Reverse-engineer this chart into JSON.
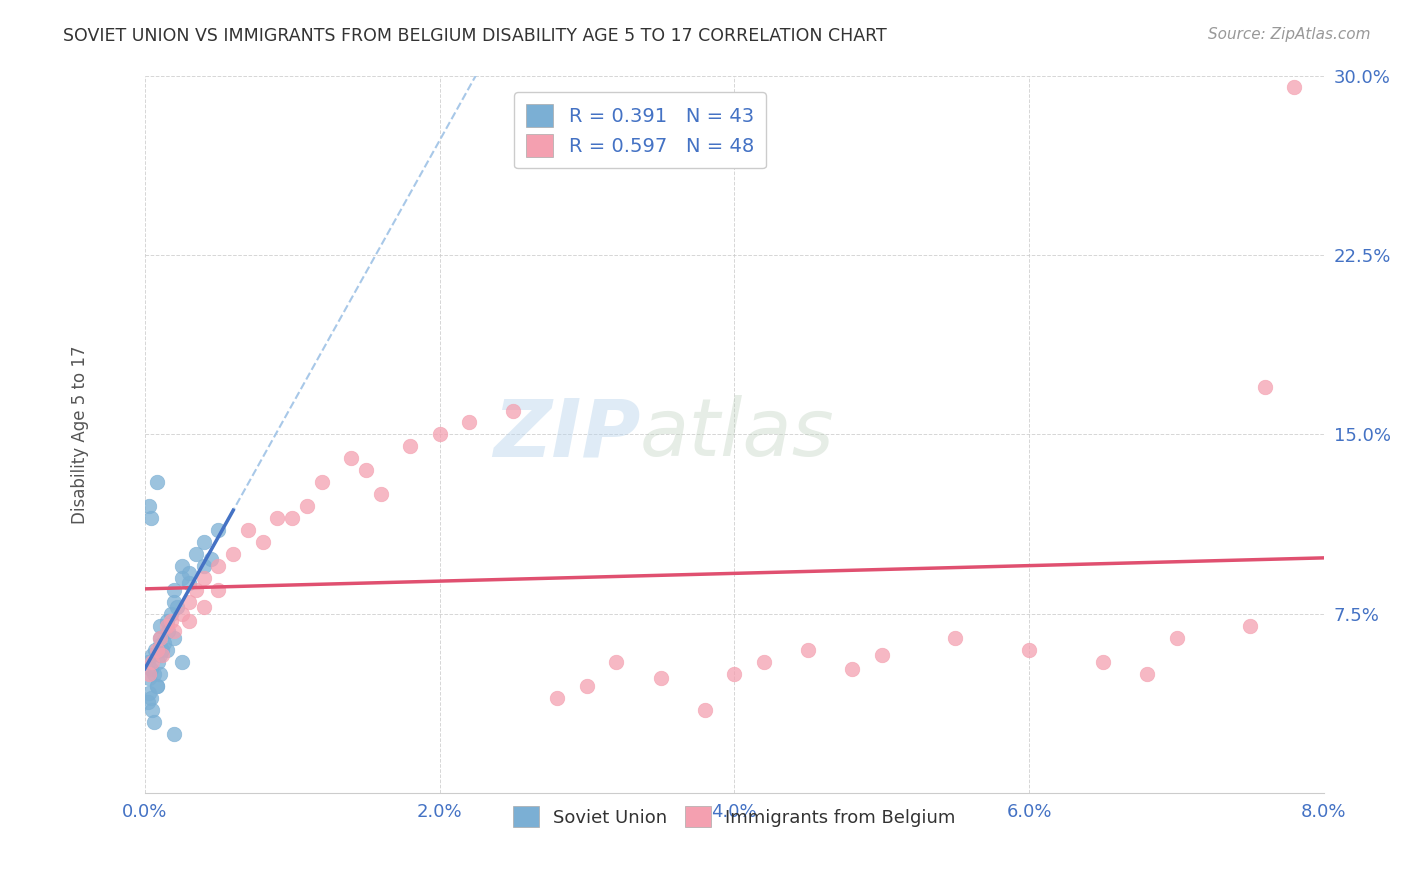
{
  "title": "SOVIET UNION VS IMMIGRANTS FROM BELGIUM DISABILITY AGE 5 TO 17 CORRELATION CHART",
  "source": "Source: ZipAtlas.com",
  "ylabel": "Disability Age 5 to 17",
  "xlim": [
    0.0,
    0.08
  ],
  "ylim": [
    0.0,
    0.3
  ],
  "xticks": [
    0.0,
    0.02,
    0.04,
    0.06,
    0.08
  ],
  "yticks": [
    0.075,
    0.15,
    0.225,
    0.3
  ],
  "xticklabels": [
    "0.0%",
    "2.0%",
    "4.0%",
    "6.0%",
    "8.0%"
  ],
  "yticklabels": [
    "7.5%",
    "15.0%",
    "22.5%",
    "30.0%"
  ],
  "blue_color": "#7BAFD4",
  "pink_color": "#F4A0B0",
  "blue_line_color": "#4472C4",
  "pink_line_color": "#E05070",
  "blue_dash_color": "#A8C8E8",
  "tick_color": "#4472C4",
  "legend_r1": "R = 0.391",
  "legend_n1": "N = 43",
  "legend_r2": "R = 0.597",
  "legend_n2": "N = 48",
  "watermark_zip": "ZIP",
  "watermark_atlas": "atlas",
  "soviet_x": [
    0.0002,
    0.0003,
    0.0004,
    0.0005,
    0.0006,
    0.0007,
    0.0008,
    0.0009,
    0.001,
    0.001,
    0.001,
    0.001,
    0.0012,
    0.0013,
    0.0015,
    0.0016,
    0.0018,
    0.002,
    0.002,
    0.002,
    0.0022,
    0.0025,
    0.0025,
    0.003,
    0.003,
    0.0035,
    0.004,
    0.004,
    0.0045,
    0.005,
    0.0002,
    0.0003,
    0.0004,
    0.0005,
    0.0006,
    0.0008,
    0.001,
    0.0015,
    0.002,
    0.0025,
    0.0003,
    0.0004,
    0.0008
  ],
  "soviet_y": [
    0.055,
    0.048,
    0.052,
    0.058,
    0.05,
    0.06,
    0.045,
    0.055,
    0.062,
    0.058,
    0.065,
    0.07,
    0.06,
    0.063,
    0.072,
    0.068,
    0.075,
    0.065,
    0.08,
    0.085,
    0.078,
    0.09,
    0.095,
    0.088,
    0.092,
    0.1,
    0.095,
    0.105,
    0.098,
    0.11,
    0.038,
    0.042,
    0.04,
    0.035,
    0.03,
    0.045,
    0.05,
    0.06,
    0.025,
    0.055,
    0.12,
    0.115,
    0.13
  ],
  "belgium_x": [
    0.0003,
    0.0005,
    0.0008,
    0.001,
    0.0012,
    0.0015,
    0.0018,
    0.002,
    0.0025,
    0.003,
    0.003,
    0.0035,
    0.004,
    0.004,
    0.005,
    0.005,
    0.006,
    0.007,
    0.008,
    0.009,
    0.01,
    0.011,
    0.012,
    0.014,
    0.015,
    0.016,
    0.018,
    0.02,
    0.022,
    0.025,
    0.028,
    0.03,
    0.032,
    0.035,
    0.038,
    0.04,
    0.042,
    0.045,
    0.048,
    0.05,
    0.055,
    0.06,
    0.065,
    0.068,
    0.07,
    0.075,
    0.076,
    0.078
  ],
  "belgium_y": [
    0.05,
    0.055,
    0.06,
    0.065,
    0.058,
    0.07,
    0.072,
    0.068,
    0.075,
    0.08,
    0.072,
    0.085,
    0.078,
    0.09,
    0.085,
    0.095,
    0.1,
    0.11,
    0.105,
    0.115,
    0.115,
    0.12,
    0.13,
    0.14,
    0.135,
    0.125,
    0.145,
    0.15,
    0.155,
    0.16,
    0.04,
    0.045,
    0.055,
    0.048,
    0.035,
    0.05,
    0.055,
    0.06,
    0.052,
    0.058,
    0.065,
    0.06,
    0.055,
    0.05,
    0.065,
    0.07,
    0.17,
    0.295
  ]
}
